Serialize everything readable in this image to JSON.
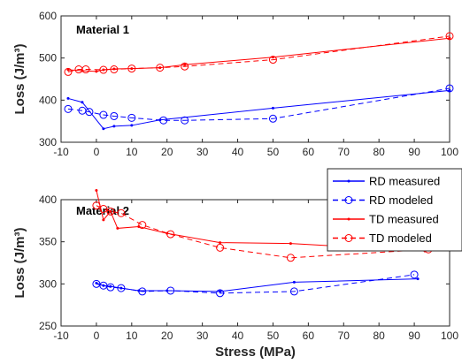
{
  "chart_data": [
    {
      "type": "line",
      "title": "Material 1",
      "xlabel": "",
      "ylabel": "Loss (J/m³)",
      "xlim": [
        -10,
        100
      ],
      "ylim": [
        300,
        600
      ],
      "x_ticks": [
        "-10",
        "0",
        "10",
        "20",
        "30",
        "40",
        "50",
        "60",
        "70",
        "80",
        "90",
        "100"
      ],
      "y_ticks": [
        "300",
        "400",
        "500",
        "600"
      ],
      "series": [
        {
          "name": "RD measured",
          "color": "#0000ff",
          "style": "solid",
          "marker": "dot",
          "x": [
            -8,
            -4,
            2,
            5,
            10,
            18,
            50,
            100
          ],
          "y": [
            404,
            395,
            332,
            338,
            340,
            353,
            381,
            423
          ]
        },
        {
          "name": "RD modeled",
          "color": "#0000ff",
          "style": "dashed",
          "marker": "circle",
          "x": [
            -8,
            -4,
            -2,
            2,
            5,
            10,
            19,
            25,
            50,
            100
          ],
          "y": [
            379,
            375,
            372,
            365,
            362,
            358,
            352,
            352,
            356,
            428
          ]
        },
        {
          "name": "TD measured",
          "color": "#ff0000",
          "style": "solid",
          "marker": "dot",
          "x": [
            -8,
            -4,
            0,
            2,
            5,
            10,
            18,
            25,
            50,
            100
          ],
          "y": [
            472,
            470,
            468,
            472,
            474,
            475,
            477,
            484,
            502,
            547
          ]
        },
        {
          "name": "TD modeled",
          "color": "#ff0000",
          "style": "dashed",
          "marker": "circle",
          "x": [
            -8,
            -5,
            -3,
            2,
            5,
            10,
            18,
            25,
            50,
            100
          ],
          "y": [
            467,
            473,
            473,
            472,
            473,
            475,
            477,
            480,
            496,
            552
          ]
        }
      ]
    },
    {
      "type": "line",
      "title": "Material 2",
      "xlabel": "Stress (MPa)",
      "ylabel": "Loss (J/m³)",
      "xlim": [
        -10,
        100
      ],
      "ylim": [
        250,
        400
      ],
      "x_ticks": [
        "-10",
        "0",
        "10",
        "20",
        "30",
        "40",
        "50",
        "60",
        "70",
        "80",
        "90",
        "100"
      ],
      "y_ticks": [
        "250",
        "300",
        "350",
        "400"
      ],
      "series": [
        {
          "name": "RD measured",
          "color": "#0000ff",
          "style": "solid",
          "marker": "dot",
          "x": [
            0,
            2,
            4,
            7,
            12,
            20,
            35,
            56,
            91
          ],
          "y": [
            301,
            298,
            297,
            295,
            292,
            292,
            291,
            302,
            306
          ]
        },
        {
          "name": "RD modeled",
          "color": "#0000ff",
          "style": "dashed",
          "marker": "circle",
          "x": [
            0,
            2,
            4,
            7,
            13,
            21,
            35,
            56,
            90
          ],
          "y": [
            300,
            298,
            296,
            295,
            291,
            292,
            289,
            291,
            311
          ]
        },
        {
          "name": "TD measured",
          "color": "#ff0000",
          "style": "solid",
          "marker": "dot",
          "x": [
            0,
            2,
            4,
            6,
            12,
            20,
            35,
            55,
            93
          ],
          "y": [
            411,
            376,
            386,
            366,
            368,
            360,
            349,
            348,
            339
          ]
        },
        {
          "name": "TD modeled",
          "color": "#ff0000",
          "style": "dashed",
          "marker": "circle",
          "x": [
            0,
            2,
            4,
            7,
            13,
            21,
            35,
            55,
            94
          ],
          "y": [
            393,
            389,
            386,
            384,
            370,
            359,
            343,
            331,
            341
          ]
        }
      ]
    }
  ],
  "legend": {
    "placement": "right",
    "entries": [
      "RD measured",
      "RD modeled",
      "TD measured",
      "TD modeled"
    ]
  }
}
